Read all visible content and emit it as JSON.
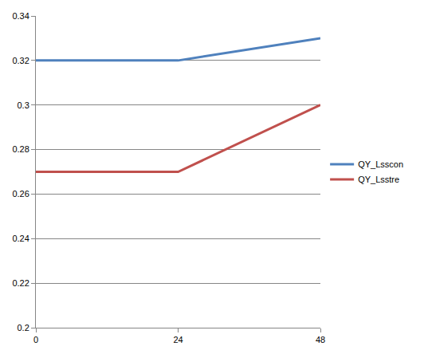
{
  "chart_data": {
    "type": "line",
    "categories": [
      "0",
      "24",
      "48"
    ],
    "series": [
      {
        "name": "QY_Lsscon",
        "color": "#4f81bd",
        "values": [
          0.32,
          0.32,
          0.33
        ]
      },
      {
        "name": "QY_Lsstre",
        "color": "#c0504d",
        "values": [
          0.27,
          0.27,
          0.3
        ]
      }
    ],
    "ylim": [
      0.2,
      0.34
    ],
    "yticks": [
      0.2,
      0.22,
      0.24,
      0.26,
      0.28,
      0.3,
      0.32,
      0.34
    ],
    "grid": true,
    "legend": "right"
  }
}
